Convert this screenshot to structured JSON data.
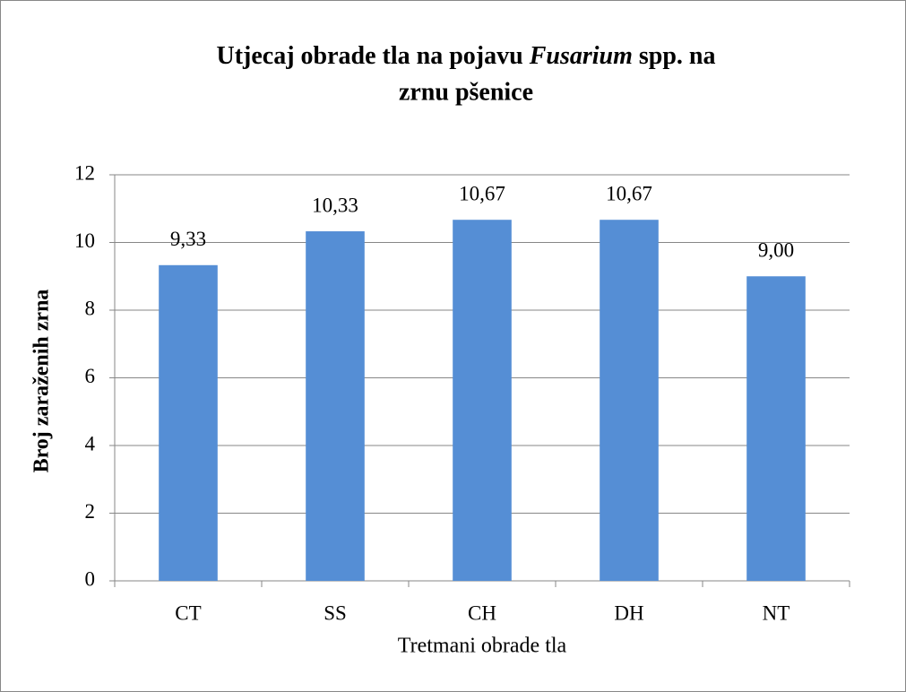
{
  "chart_data": {
    "type": "bar",
    "title": [
      "Utjecaj obrade tla na pojavu",
      "Fusarium",
      "spp. na",
      "zrnu pšenice"
    ],
    "x_label": "Tretmani obrade tla",
    "y_label": "Broj zaraženih zrna",
    "categories": [
      "CT",
      "SS",
      "CH",
      "DH",
      "NT"
    ],
    "values": [
      9.33,
      10.33,
      10.67,
      10.67,
      9.0
    ],
    "value_labels": [
      "9,33",
      "10,33",
      "10,67",
      "10,67",
      "9,00"
    ],
    "color": "#558ed5",
    "ylim": [
      0,
      12
    ],
    "yticks": [
      0,
      2,
      4,
      6,
      8,
      10,
      12
    ],
    "grid": true
  }
}
